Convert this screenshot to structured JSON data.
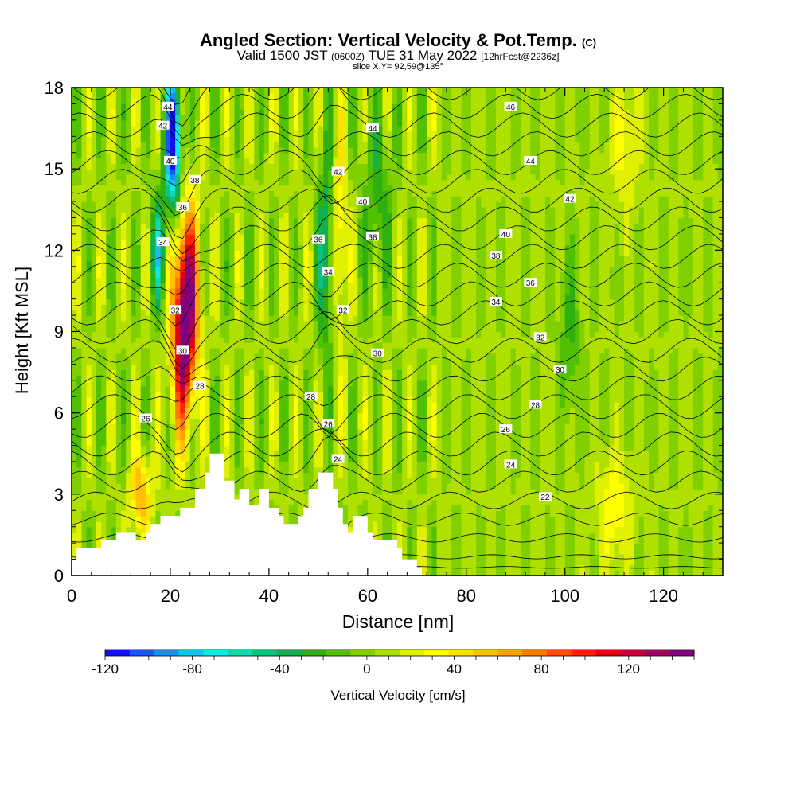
{
  "chart_data": {
    "type": "heatmap",
    "title": "Angled Section: Vertical Velocity & Pot.Temp.",
    "title_mark": "(C)",
    "subtitle_parts": [
      "Valid 1500 JST ",
      "(0600Z)",
      " TUE 31 May 2022 ",
      "[12hrFcst@2236z]"
    ],
    "slice_label": "slice X,Y= 92,59@135°",
    "xlabel": "Distance [nm]",
    "ylabel": "Height [Kft MSL]",
    "xlim": [
      0,
      132
    ],
    "ylim": [
      0,
      18
    ],
    "x_ticks": [
      0,
      20,
      40,
      60,
      80,
      100,
      120
    ],
    "y_ticks": [
      0,
      3,
      6,
      9,
      12,
      15,
      18
    ],
    "colorbar": {
      "label": "Vertical Velocity [cm/s]",
      "range": [
        -120,
        150
      ],
      "tick_values": [
        -120,
        -80,
        -40,
        0,
        40,
        80,
        120
      ],
      "colors": [
        "#1010f0",
        "#1858f0",
        "#1890f0",
        "#18c0f0",
        "#10e8e8",
        "#10d8b0",
        "#10c080",
        "#10b050",
        "#30b010",
        "#50c000",
        "#80d000",
        "#b0e000",
        "#e0f000",
        "#ffff00",
        "#ffe000",
        "#ffc000",
        "#ffa000",
        "#ff7800",
        "#ff5000",
        "#ff2000",
        "#e00010",
        "#c00040",
        "#a00060",
        "#800080"
      ]
    },
    "terrain": [
      [
        0,
        0.6
      ],
      [
        1,
        0.6
      ],
      [
        1,
        1.0
      ],
      [
        6,
        1.0
      ],
      [
        6,
        1.3
      ],
      [
        9,
        1.3
      ],
      [
        9,
        1.6
      ],
      [
        13,
        1.6
      ],
      [
        13,
        1.3
      ],
      [
        15,
        1.3
      ],
      [
        15,
        1.6
      ],
      [
        16,
        1.6
      ],
      [
        16,
        1.9
      ],
      [
        18,
        1.9
      ],
      [
        18,
        2.2
      ],
      [
        22,
        2.2
      ],
      [
        22,
        2.5
      ],
      [
        25,
        2.5
      ],
      [
        25,
        3.2
      ],
      [
        27,
        3.2
      ],
      [
        27,
        3.8
      ],
      [
        28,
        3.8
      ],
      [
        28,
        4.5
      ],
      [
        31,
        4.5
      ],
      [
        31,
        3.5
      ],
      [
        33,
        3.5
      ],
      [
        33,
        2.8
      ],
      [
        34,
        2.8
      ],
      [
        34,
        3.2
      ],
      [
        36,
        3.2
      ],
      [
        36,
        2.6
      ],
      [
        38,
        2.6
      ],
      [
        38,
        3.2
      ],
      [
        40,
        3.2
      ],
      [
        40,
        2.5
      ],
      [
        42,
        2.5
      ],
      [
        42,
        2.2
      ],
      [
        43,
        2.2
      ],
      [
        43,
        1.9
      ],
      [
        46,
        1.9
      ],
      [
        46,
        2.2
      ],
      [
        47,
        2.2
      ],
      [
        47,
        2.5
      ],
      [
        48,
        2.5
      ],
      [
        48,
        3.2
      ],
      [
        50,
        3.2
      ],
      [
        50,
        3.8
      ],
      [
        53,
        3.8
      ],
      [
        53,
        3.2
      ],
      [
        54,
        3.2
      ],
      [
        54,
        2.5
      ],
      [
        55,
        2.5
      ],
      [
        55,
        1.9
      ],
      [
        56,
        1.9
      ],
      [
        56,
        1.6
      ],
      [
        57,
        1.6
      ],
      [
        57,
        2.2
      ],
      [
        60,
        2.2
      ],
      [
        60,
        1.6
      ],
      [
        61,
        1.6
      ],
      [
        61,
        1.3
      ],
      [
        66,
        1.3
      ],
      [
        66,
        1.0
      ],
      [
        67,
        1.0
      ],
      [
        67,
        0.6
      ],
      [
        70,
        0.6
      ],
      [
        70,
        0.3
      ],
      [
        71,
        0.3
      ],
      [
        71,
        0
      ]
    ],
    "theta_levels": [
      22,
      24,
      26,
      28,
      30,
      32,
      34,
      36,
      38,
      40,
      42,
      44,
      46
    ],
    "theta_labels": [
      {
        "text": "44",
        "x": 19.5,
        "y": 17.3
      },
      {
        "text": "42",
        "x": 18.5,
        "y": 16.6
      },
      {
        "text": "40",
        "x": 20,
        "y": 15.3
      },
      {
        "text": "38",
        "x": 25,
        "y": 14.6
      },
      {
        "text": "36",
        "x": 22.5,
        "y": 13.6
      },
      {
        "text": "34",
        "x": 18.5,
        "y": 12.3
      },
      {
        "text": "32",
        "x": 21,
        "y": 9.8
      },
      {
        "text": "30",
        "x": 22.5,
        "y": 8.3
      },
      {
        "text": "28",
        "x": 26,
        "y": 7.0
      },
      {
        "text": "26",
        "x": 15,
        "y": 5.8
      },
      {
        "text": "42",
        "x": 54,
        "y": 14.9
      },
      {
        "text": "40",
        "x": 59,
        "y": 13.8
      },
      {
        "text": "38",
        "x": 61,
        "y": 12.5
      },
      {
        "text": "36",
        "x": 50,
        "y": 12.4
      },
      {
        "text": "34",
        "x": 52,
        "y": 11.2
      },
      {
        "text": "32",
        "x": 55,
        "y": 9.8
      },
      {
        "text": "30",
        "x": 62,
        "y": 8.2
      },
      {
        "text": "28",
        "x": 48.5,
        "y": 6.6
      },
      {
        "text": "26",
        "x": 52,
        "y": 5.6
      },
      {
        "text": "24",
        "x": 54,
        "y": 4.3
      },
      {
        "text": "44",
        "x": 61,
        "y": 16.5
      },
      {
        "text": "46",
        "x": 89,
        "y": 17.3
      },
      {
        "text": "44",
        "x": 93,
        "y": 15.3
      },
      {
        "text": "42",
        "x": 101,
        "y": 13.9
      },
      {
        "text": "40",
        "x": 88,
        "y": 12.6
      },
      {
        "text": "38",
        "x": 86,
        "y": 11.8
      },
      {
        "text": "36",
        "x": 93,
        "y": 10.8
      },
      {
        "text": "34",
        "x": 86,
        "y": 10.1
      },
      {
        "text": "32",
        "x": 95,
        "y": 8.8
      },
      {
        "text": "30",
        "x": 99,
        "y": 7.6
      },
      {
        "text": "28",
        "x": 94,
        "y": 6.3
      },
      {
        "text": "26",
        "x": 88,
        "y": 5.4
      },
      {
        "text": "24",
        "x": 89,
        "y": 4.1
      },
      {
        "text": "22",
        "x": 96,
        "y": 2.9
      }
    ]
  }
}
